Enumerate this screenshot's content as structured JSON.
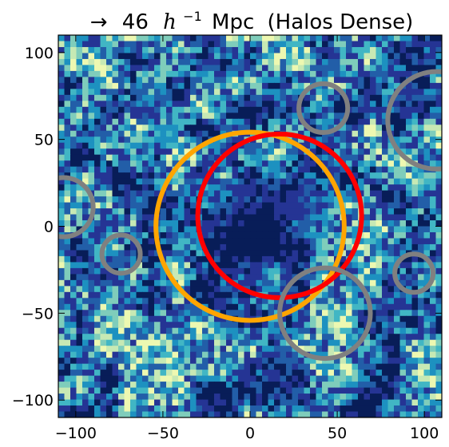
{
  "chart_data": {
    "type": "heatmap",
    "title": {
      "arrow": "→",
      "distance": "46",
      "h": "h",
      "exponent": "−1",
      "unit": "Mpc",
      "label": "(Halos Dense)"
    },
    "xlabel": "",
    "ylabel": "",
    "xlim": [
      -110,
      110
    ],
    "ylim": [
      -110,
      110
    ],
    "xticks": [
      {
        "value": -100,
        "label": "−100"
      },
      {
        "value": -50,
        "label": "−50"
      },
      {
        "value": 0,
        "label": "0"
      },
      {
        "value": 50,
        "label": "50"
      },
      {
        "value": 100,
        "label": "100"
      }
    ],
    "yticks": [
      {
        "value": 100,
        "label": "100"
      },
      {
        "value": 50,
        "label": "50"
      },
      {
        "value": 0,
        "label": "0"
      },
      {
        "value": -50,
        "label": "−50"
      },
      {
        "value": -100,
        "label": "−100"
      }
    ],
    "colormap": [
      "#081d58",
      "#253494",
      "#225ea8",
      "#1d91c0",
      "#41b6c4",
      "#7fcdbb",
      "#c7e9b4",
      "#edf8b1"
    ],
    "grid": false,
    "circles": [
      {
        "name": "void-orange",
        "cx": 0,
        "cy": 0,
        "r": 54,
        "color": "#ffa500"
      },
      {
        "name": "void-red",
        "cx": 17,
        "cy": 6,
        "r": 47,
        "color": "#ff0000"
      },
      {
        "name": "halo-1",
        "cx": 42,
        "cy": 68,
        "r": 14,
        "color": "#808080"
      },
      {
        "name": "halo-2",
        "cx": 107,
        "cy": 61,
        "r": 28,
        "color": "#808080"
      },
      {
        "name": "halo-3",
        "cx": -107,
        "cy": 11,
        "r": 17,
        "color": "#808080"
      },
      {
        "name": "halo-4",
        "cx": -74,
        "cy": -16,
        "r": 11,
        "color": "#808080"
      },
      {
        "name": "halo-5",
        "cx": 43,
        "cy": -50,
        "r": 26,
        "color": "#808080"
      },
      {
        "name": "halo-6",
        "cx": 94,
        "cy": -27,
        "r": 11,
        "color": "#808080"
      }
    ]
  }
}
